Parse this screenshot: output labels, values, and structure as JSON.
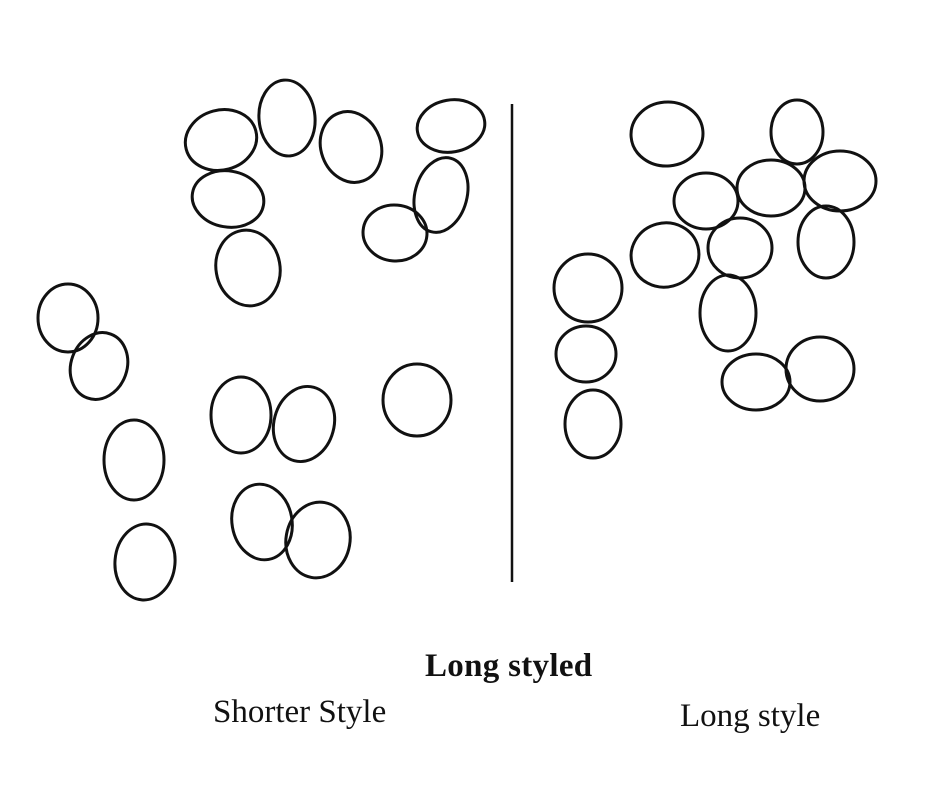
{
  "figure": {
    "title": "Long styled",
    "panels": [
      {
        "label": "Shorter Style",
        "cell_count": 19
      },
      {
        "label": "Long style",
        "cell_count": 15
      }
    ],
    "stroke_color": "#111111",
    "background_color": "#ffffff"
  }
}
